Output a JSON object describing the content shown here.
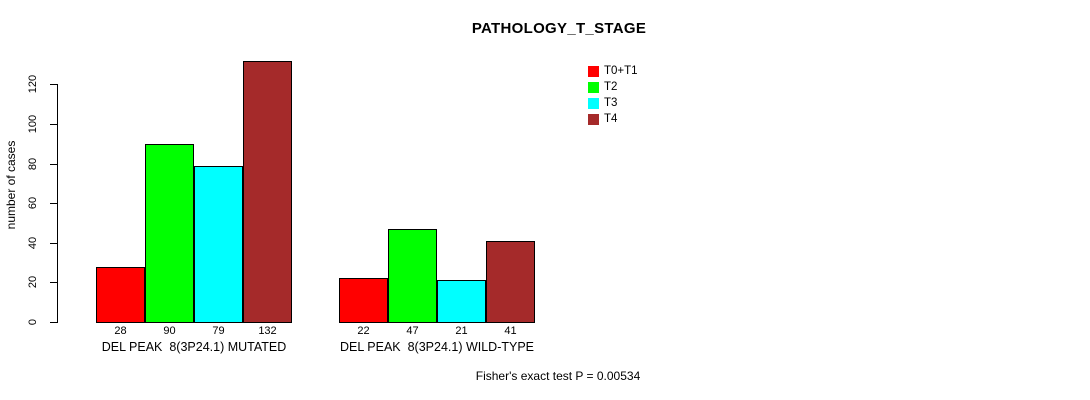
{
  "chart_data": {
    "type": "bar",
    "title": "PATHOLOGY_T_STAGE",
    "ylabel": "number of cases",
    "xlabel": "",
    "ylim": [
      0,
      132
    ],
    "yticks": [
      0,
      20,
      40,
      60,
      80,
      100,
      120
    ],
    "grid": false,
    "legend_position": "top-right-outside",
    "categories": [
      "DEL PEAK  8(3P24.1) MUTATED",
      "DEL PEAK  8(3P24.1) WILD-TYPE"
    ],
    "series": [
      {
        "name": "T0+T1",
        "color": "#FF0000",
        "values": [
          28,
          22
        ]
      },
      {
        "name": "T2",
        "color": "#00FF00",
        "values": [
          90,
          47
        ]
      },
      {
        "name": "T3",
        "color": "#00FFFF",
        "values": [
          79,
          21
        ]
      },
      {
        "name": "T4",
        "color": "#A52A2A",
        "values": [
          132,
          41
        ]
      }
    ],
    "bar_value_labels": [
      [
        28,
        90,
        79,
        132
      ],
      [
        22,
        47,
        21,
        41
      ]
    ],
    "annotation": "Fisher's exact test P = 0.00534",
    "axis_color": "#000000",
    "background_color": "#FFFFFF"
  }
}
